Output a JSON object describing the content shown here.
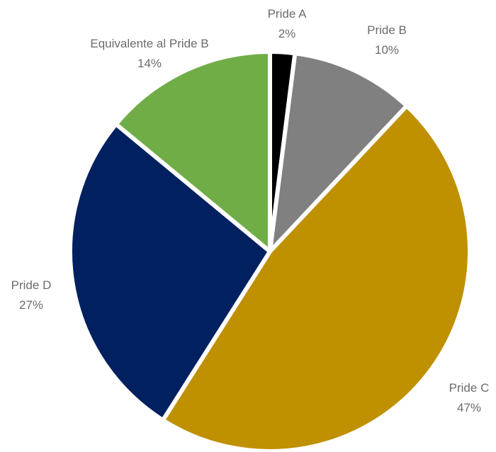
{
  "chart_data": {
    "type": "pie",
    "slices": [
      {
        "label": "Pride A",
        "value": 2,
        "display": "2%",
        "color": "#000000"
      },
      {
        "label": "Pride B",
        "value": 10,
        "display": "10%",
        "color": "#808080"
      },
      {
        "label": "Pride C",
        "value": 47,
        "display": "47%",
        "color": "#BF9000"
      },
      {
        "label": "Pride D",
        "value": 27,
        "display": "27%",
        "color": "#002060"
      },
      {
        "label": "Equivalente al Pride B",
        "value": 14,
        "display": "14%",
        "color": "#70AD47"
      }
    ],
    "start_angle_deg": 0,
    "direction": "clockwise",
    "data_labels": "outside",
    "legend": "none"
  }
}
